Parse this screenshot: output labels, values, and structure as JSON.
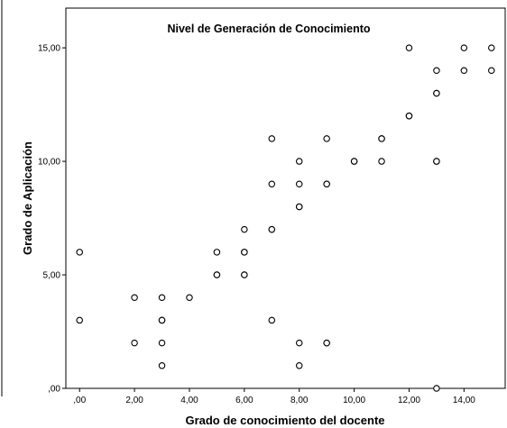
{
  "chart_data": {
    "type": "scatter",
    "title": "Nivel de Generación de Conocimiento",
    "xlabel": "Grado de conocimiento del docente",
    "ylabel": "Grado de Aplicación",
    "xlim": [
      -0.5,
      15.5
    ],
    "ylim": [
      0,
      16.75
    ],
    "x_ticks": [
      0,
      2,
      4,
      6,
      8,
      10,
      12,
      14
    ],
    "x_tick_labels": [
      ",00",
      "2,00",
      "4,00",
      "6,00",
      "8,00",
      "10,00",
      "12,00",
      "14,00"
    ],
    "y_ticks": [
      0,
      5,
      10,
      15
    ],
    "y_tick_labels": [
      ",00",
      "5,00",
      "10,00",
      "15,00"
    ],
    "grid": false,
    "marker": "open-circle",
    "colors": {
      "marker_stroke": "#000000",
      "marker_fill": "#ffffff",
      "background": "#ffffff"
    },
    "points": [
      [
        0,
        6
      ],
      [
        0,
        3
      ],
      [
        2,
        4
      ],
      [
        2,
        2
      ],
      [
        3,
        4
      ],
      [
        3,
        3
      ],
      [
        3,
        3
      ],
      [
        3,
        2
      ],
      [
        3,
        1
      ],
      [
        4,
        4
      ],
      [
        5,
        6
      ],
      [
        5,
        5
      ],
      [
        5,
        5
      ],
      [
        6,
        7
      ],
      [
        6,
        6
      ],
      [
        6,
        6
      ],
      [
        6,
        5
      ],
      [
        6,
        5
      ],
      [
        7,
        11
      ],
      [
        7,
        9
      ],
      [
        7,
        7
      ],
      [
        7,
        7
      ],
      [
        7,
        3
      ],
      [
        8,
        10
      ],
      [
        8,
        9
      ],
      [
        8,
        8
      ],
      [
        8,
        8
      ],
      [
        8,
        2
      ],
      [
        8,
        1
      ],
      [
        9,
        11
      ],
      [
        9,
        9
      ],
      [
        9,
        9
      ],
      [
        9,
        2
      ],
      [
        9,
        2
      ],
      [
        10,
        10
      ],
      [
        10,
        10
      ],
      [
        11,
        11
      ],
      [
        11,
        11
      ],
      [
        11,
        10
      ],
      [
        12,
        15
      ],
      [
        12,
        12
      ],
      [
        12,
        12
      ],
      [
        13,
        14
      ],
      [
        13,
        13
      ],
      [
        13,
        13
      ],
      [
        13,
        10
      ],
      [
        13,
        10
      ],
      [
        13,
        0
      ],
      [
        14,
        15
      ],
      [
        14,
        14
      ],
      [
        15,
        15
      ],
      [
        15,
        14
      ]
    ]
  }
}
